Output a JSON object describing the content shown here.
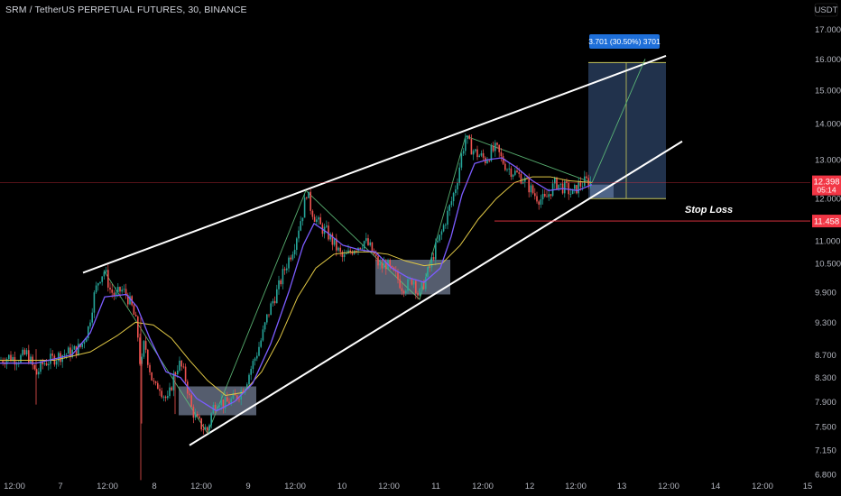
{
  "header": {
    "title": "SRM / TetherUS PERPETUAL FUTURES, 30, BINANCE",
    "currency": "USDT"
  },
  "colors": {
    "background": "#000000",
    "candle_up": "#26a69a",
    "candle_down": "#ef5350",
    "ma_fast": "#7b5cff",
    "ma_slow": "#e1c845",
    "channel": "#ffffff",
    "zone": "#9aa9c8",
    "last_price": "#f23645",
    "stop": "#f23645",
    "target_box": "#4a6ea8",
    "badge": "#1e6fd9"
  },
  "chart_data": {
    "type": "candlestick",
    "symbol": "SRM / TetherUS PERPETUAL FUTURES",
    "interval": "30",
    "exchange": "BINANCE",
    "y_scale": "log",
    "ylim": [
      6.65,
      17.6
    ],
    "xlim": [
      0,
      892
    ],
    "price_ticks": [
      "17.000",
      "16.000",
      "15.000",
      "14.000",
      "13.000",
      "12.000",
      "11.000",
      "10.500",
      "9.900",
      "9.300",
      "8.700",
      "8.300",
      "7.900",
      "7.500",
      "7.150",
      "6.800"
    ],
    "time_ticks": [
      {
        "label": "12:00",
        "x": 16
      },
      {
        "label": "7",
        "x": 67
      },
      {
        "label": "12:00",
        "x": 119
      },
      {
        "label": "8",
        "x": 171
      },
      {
        "label": "12:00",
        "x": 223
      },
      {
        "label": "9",
        "x": 275
      },
      {
        "label": "12:00",
        "x": 327
      },
      {
        "label": "10",
        "x": 379
      },
      {
        "label": "12:00",
        "x": 431
      },
      {
        "label": "11",
        "x": 483
      },
      {
        "label": "12:00",
        "x": 535
      },
      {
        "label": "12",
        "x": 587
      },
      {
        "label": "12:00",
        "x": 638
      },
      {
        "label": "13",
        "x": 689
      },
      {
        "label": "12:00",
        "x": 741
      },
      {
        "label": "14",
        "x": 793
      },
      {
        "label": "12:00",
        "x": 845
      },
      {
        "label": "15",
        "x": 895
      }
    ],
    "price_path": [
      [
        0,
        8.6
      ],
      [
        10,
        8.66
      ],
      [
        20,
        8.62
      ],
      [
        30,
        8.72
      ],
      [
        40,
        8.35
      ],
      [
        48,
        8.55
      ],
      [
        58,
        8.62
      ],
      [
        68,
        8.7
      ],
      [
        80,
        8.75
      ],
      [
        90,
        8.85
      ],
      [
        98,
        9.2
      ],
      [
        104,
        9.8
      ],
      [
        110,
        10.2
      ],
      [
        116,
        10.35
      ],
      [
        122,
        9.95
      ],
      [
        128,
        9.8
      ],
      [
        134,
        9.95
      ],
      [
        140,
        9.85
      ],
      [
        146,
        9.6
      ],
      [
        152,
        9.2
      ],
      [
        156,
        8.4
      ],
      [
        160,
        8.95
      ],
      [
        164,
        8.6
      ],
      [
        168,
        8.3
      ],
      [
        172,
        8.1
      ],
      [
        176,
        8.2
      ],
      [
        180,
        8.05
      ],
      [
        186,
        7.9
      ],
      [
        192,
        8.3
      ],
      [
        198,
        8.55
      ],
      [
        202,
        8.45
      ],
      [
        206,
        8.25
      ],
      [
        212,
        7.8
      ],
      [
        218,
        7.6
      ],
      [
        224,
        7.5
      ],
      [
        230,
        7.45
      ],
      [
        236,
        7.8
      ],
      [
        242,
        7.95
      ],
      [
        248,
        7.85
      ],
      [
        254,
        7.9
      ],
      [
        260,
        7.95
      ],
      [
        266,
        8.05
      ],
      [
        272,
        8.2
      ],
      [
        278,
        8.45
      ],
      [
        284,
        8.7
      ],
      [
        290,
        9.0
      ],
      [
        296,
        9.4
      ],
      [
        302,
        9.7
      ],
      [
        308,
        9.95
      ],
      [
        314,
        10.3
      ],
      [
        320,
        10.6
      ],
      [
        326,
        10.9
      ],
      [
        332,
        11.4
      ],
      [
        336,
        11.7
      ],
      [
        340,
        12.2
      ],
      [
        344,
        11.8
      ],
      [
        350,
        11.5
      ],
      [
        356,
        11.3
      ],
      [
        362,
        11.2
      ],
      [
        368,
        11.0
      ],
      [
        374,
        10.8
      ],
      [
        380,
        10.6
      ],
      [
        386,
        10.7
      ],
      [
        392,
        10.85
      ],
      [
        398,
        10.9
      ],
      [
        404,
        11.0
      ],
      [
        410,
        10.85
      ],
      [
        416,
        10.6
      ],
      [
        422,
        10.4
      ],
      [
        428,
        10.5
      ],
      [
        434,
        10.3
      ],
      [
        440,
        10.2
      ],
      [
        446,
        10.0
      ],
      [
        452,
        10.05
      ],
      [
        458,
        10.2
      ],
      [
        464,
        9.8
      ],
      [
        470,
        10.1
      ],
      [
        476,
        10.4
      ],
      [
        482,
        10.8
      ],
      [
        488,
        11.1
      ],
      [
        494,
        11.5
      ],
      [
        500,
        11.9
      ],
      [
        506,
        12.4
      ],
      [
        512,
        13.2
      ],
      [
        516,
        13.6
      ],
      [
        520,
        13.4
      ],
      [
        526,
        13.2
      ],
      [
        532,
        13.1
      ],
      [
        538,
        13.0
      ],
      [
        544,
        13.2
      ],
      [
        550,
        13.3
      ],
      [
        556,
        13.0
      ],
      [
        562,
        12.8
      ],
      [
        568,
        12.7
      ],
      [
        574,
        12.6
      ],
      [
        580,
        12.5
      ],
      [
        586,
        12.3
      ],
      [
        592,
        12.1
      ],
      [
        598,
        12.0
      ],
      [
        604,
        11.95
      ],
      [
        610,
        12.2
      ],
      [
        616,
        12.4
      ],
      [
        622,
        12.3
      ],
      [
        628,
        12.25
      ],
      [
        634,
        12.1
      ],
      [
        640,
        12.3
      ],
      [
        646,
        12.4
      ],
      [
        652,
        12.45
      ],
      [
        656,
        12.39
      ]
    ],
    "ma_fast": [
      [
        0,
        8.55
      ],
      [
        40,
        8.55
      ],
      [
        80,
        8.7
      ],
      [
        100,
        9.1
      ],
      [
        116,
        9.8
      ],
      [
        140,
        9.85
      ],
      [
        152,
        9.6
      ],
      [
        166,
        9.0
      ],
      [
        184,
        8.4
      ],
      [
        200,
        8.3
      ],
      [
        218,
        7.95
      ],
      [
        240,
        7.75
      ],
      [
        260,
        7.9
      ],
      [
        280,
        8.2
      ],
      [
        300,
        8.9
      ],
      [
        320,
        9.9
      ],
      [
        336,
        10.9
      ],
      [
        348,
        11.4
      ],
      [
        362,
        11.2
      ],
      [
        380,
        10.9
      ],
      [
        398,
        10.8
      ],
      [
        416,
        10.75
      ],
      [
        434,
        10.4
      ],
      [
        452,
        10.2
      ],
      [
        470,
        10.1
      ],
      [
        488,
        10.4
      ],
      [
        500,
        11.1
      ],
      [
        512,
        12.1
      ],
      [
        526,
        12.9
      ],
      [
        540,
        13.0
      ],
      [
        556,
        13.05
      ],
      [
        572,
        12.8
      ],
      [
        590,
        12.45
      ],
      [
        608,
        12.2
      ],
      [
        624,
        12.25
      ],
      [
        640,
        12.2
      ],
      [
        656,
        12.35
      ]
    ],
    "ma_slow": [
      [
        0,
        8.6
      ],
      [
        60,
        8.6
      ],
      [
        100,
        8.75
      ],
      [
        130,
        9.05
      ],
      [
        150,
        9.3
      ],
      [
        170,
        9.25
      ],
      [
        190,
        9.0
      ],
      [
        210,
        8.6
      ],
      [
        230,
        8.25
      ],
      [
        250,
        8.0
      ],
      [
        270,
        8.05
      ],
      [
        290,
        8.4
      ],
      [
        310,
        9.0
      ],
      [
        330,
        9.8
      ],
      [
        350,
        10.4
      ],
      [
        370,
        10.7
      ],
      [
        390,
        10.75
      ],
      [
        410,
        10.75
      ],
      [
        430,
        10.7
      ],
      [
        450,
        10.55
      ],
      [
        470,
        10.45
      ],
      [
        490,
        10.5
      ],
      [
        510,
        10.9
      ],
      [
        530,
        11.5
      ],
      [
        550,
        12.0
      ],
      [
        570,
        12.4
      ],
      [
        590,
        12.55
      ],
      [
        610,
        12.55
      ],
      [
        630,
        12.45
      ],
      [
        656,
        12.4
      ]
    ],
    "zigzag": [
      [
        115,
        10.35
      ],
      [
        230,
        7.4
      ],
      [
        339,
        12.2
      ],
      [
        465,
        9.75
      ],
      [
        516,
        13.65
      ],
      [
        656,
        12.4
      ],
      [
        715,
        16.0
      ]
    ],
    "channel_upper": [
      [
        92,
        10.3
      ],
      [
        738,
        16.1
      ]
    ],
    "channel_lower": [
      [
        210,
        7.22
      ],
      [
        756,
        13.5
      ]
    ],
    "zones": [
      {
        "x0": 198,
        "x1": 284,
        "y0": 8.15,
        "y1": 7.68
      },
      {
        "x0": 416,
        "x1": 499,
        "y0": 10.58,
        "y1": 9.85
      },
      {
        "x0": 654,
        "x1": 680,
        "y0": 12.35,
        "y1": 12.02
      }
    ],
    "target_box": {
      "x0": 652,
      "x1": 738,
      "y_top": 15.88,
      "y_bottom": 12.0
    },
    "target_badge": "3.701 (30.50%) 3701",
    "stop_loss": {
      "label": "Stop Loss",
      "price": 11.458,
      "price_label": "11.458"
    },
    "last_price": {
      "price": 12.398,
      "label": "12.398",
      "countdown": "05:14"
    }
  }
}
